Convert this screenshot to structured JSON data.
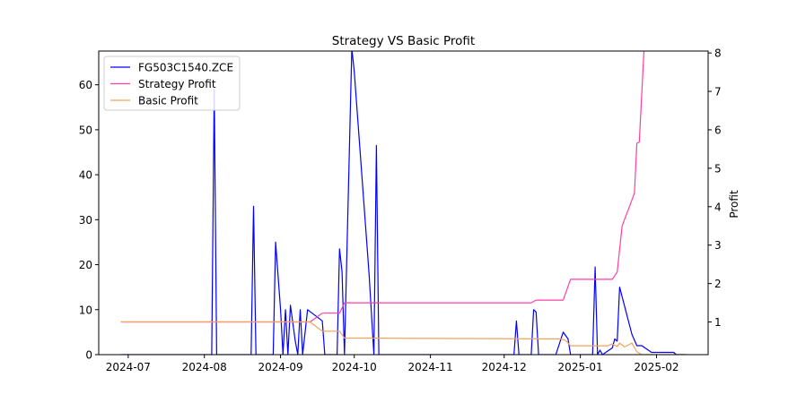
{
  "chart_data": {
    "type": "line",
    "title": "Strategy VS Basic Profit",
    "xlabel": "",
    "ylabel_left": "",
    "ylabel_right": "Profit",
    "x_ticks": [
      "2024-07",
      "2024-08",
      "2024-09",
      "2024-10",
      "2024-11",
      "2024-12",
      "2025-01",
      "2025-02"
    ],
    "x_tick_dates": [
      "2024-07-01",
      "2024-08-01",
      "2024-09-01",
      "2024-10-01",
      "2024-11-01",
      "2024-12-01",
      "2025-01-01",
      "2025-02-01"
    ],
    "xlim": [
      "2024-06-19",
      "2025-02-22"
    ],
    "ylim_left": [
      0,
      67.5
    ],
    "ylim_right": [
      0.15,
      8.05
    ],
    "y_ticks_left": [
      0,
      10,
      20,
      30,
      40,
      50,
      60
    ],
    "y_ticks_right": [
      1,
      2,
      3,
      4,
      5,
      6,
      7,
      8
    ],
    "legend": {
      "position": "top-left",
      "entries": [
        "FG503C1540.ZCE",
        "Strategy Profit",
        "Basic Profit"
      ]
    },
    "series": [
      {
        "name": "FG503C1540.ZCE",
        "axis": "left",
        "color": "#0000ff",
        "points": [
          [
            "2024-06-28",
            0
          ],
          [
            "2024-08-04",
            0
          ],
          [
            "2024-08-05",
            59
          ],
          [
            "2024-08-06",
            0
          ],
          [
            "2024-08-20",
            0
          ],
          [
            "2024-08-21",
            33
          ],
          [
            "2024-08-22",
            0
          ],
          [
            "2024-08-29",
            0
          ],
          [
            "2024-08-30",
            25
          ],
          [
            "2024-09-01",
            10
          ],
          [
            "2024-09-02",
            0
          ],
          [
            "2024-09-03",
            10
          ],
          [
            "2024-09-04",
            0
          ],
          [
            "2024-09-05",
            11
          ],
          [
            "2024-09-07",
            3
          ],
          [
            "2024-09-08",
            0
          ],
          [
            "2024-09-09",
            10
          ],
          [
            "2024-09-10",
            0
          ],
          [
            "2024-09-12",
            10
          ],
          [
            "2024-09-18",
            7.5
          ],
          [
            "2024-09-19",
            0
          ],
          [
            "2024-09-24",
            0
          ],
          [
            "2024-09-25",
            23.5
          ],
          [
            "2024-09-26",
            18.5
          ],
          [
            "2024-09-27",
            0
          ],
          [
            "2024-09-30",
            68
          ],
          [
            "2024-10-01",
            63
          ],
          [
            "2024-10-07",
            18
          ],
          [
            "2024-10-09",
            0
          ],
          [
            "2024-10-10",
            46.5
          ],
          [
            "2024-10-11",
            0
          ],
          [
            "2024-12-05",
            0
          ],
          [
            "2024-12-06",
            7.5
          ],
          [
            "2024-12-07",
            0
          ],
          [
            "2024-12-12",
            0
          ],
          [
            "2024-12-13",
            10
          ],
          [
            "2024-12-14",
            9.5
          ],
          [
            "2024-12-15",
            0
          ],
          [
            "2024-12-22",
            0
          ],
          [
            "2024-12-25",
            5
          ],
          [
            "2024-12-27",
            3.5
          ],
          [
            "2024-12-28",
            0
          ],
          [
            "2025-01-06",
            0
          ],
          [
            "2025-01-07",
            19.5
          ],
          [
            "2025-01-08",
            0
          ],
          [
            "2025-01-09",
            1
          ],
          [
            "2025-01-10",
            0
          ],
          [
            "2025-01-14",
            1.5
          ],
          [
            "2025-01-15",
            3.5
          ],
          [
            "2025-01-16",
            3
          ],
          [
            "2025-01-17",
            15
          ],
          [
            "2025-01-22",
            4.5
          ],
          [
            "2025-01-24",
            2
          ],
          [
            "2025-01-26",
            2
          ],
          [
            "2025-01-30",
            0.5
          ],
          [
            "2025-02-08",
            0.5
          ],
          [
            "2025-02-09",
            0
          ],
          [
            "2025-02-13",
            0
          ]
        ]
      },
      {
        "name": "Strategy Profit",
        "axis": "right",
        "color": "#ff3ea5",
        "points": [
          [
            "2024-06-28",
            1
          ],
          [
            "2024-09-13",
            1
          ],
          [
            "2024-09-18",
            1.23
          ],
          [
            "2024-09-25",
            1.23
          ],
          [
            "2024-09-27",
            1.5
          ],
          [
            "2024-12-12",
            1.5
          ],
          [
            "2024-12-14",
            1.57
          ],
          [
            "2024-12-25",
            1.57
          ],
          [
            "2024-12-28",
            2.11
          ],
          [
            "2025-01-14",
            2.11
          ],
          [
            "2025-01-16",
            2.3
          ],
          [
            "2025-01-18",
            3.5
          ],
          [
            "2025-01-23",
            4.35
          ],
          [
            "2025-01-24",
            5.65
          ],
          [
            "2025-01-25",
            5.68
          ],
          [
            "2025-01-27",
            8.2
          ]
        ]
      },
      {
        "name": "Basic Profit",
        "axis": "right",
        "color": "#f4a15a",
        "points": [
          [
            "2024-06-28",
            1
          ],
          [
            "2024-09-13",
            1
          ],
          [
            "2024-09-18",
            0.76
          ],
          [
            "2024-09-25",
            0.76
          ],
          [
            "2024-09-27",
            0.58
          ],
          [
            "2024-12-24",
            0.56
          ],
          [
            "2024-12-26",
            0.52
          ],
          [
            "2024-12-28",
            0.38
          ],
          [
            "2025-01-12",
            0.38
          ],
          [
            "2025-01-14",
            0.43
          ],
          [
            "2025-01-16",
            0.36
          ],
          [
            "2025-01-17",
            0.45
          ],
          [
            "2025-01-19",
            0.35
          ],
          [
            "2025-01-22",
            0.45
          ],
          [
            "2025-01-24",
            0.22
          ],
          [
            "2025-01-26",
            0.15
          ],
          [
            "2025-02-13",
            0.15
          ]
        ]
      }
    ]
  }
}
